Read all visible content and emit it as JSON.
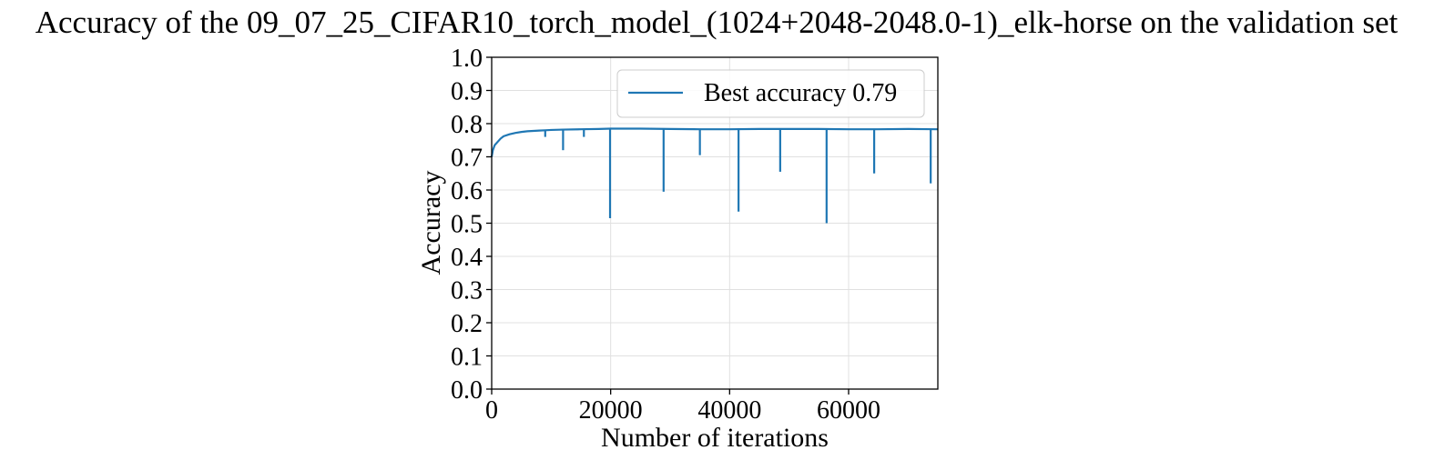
{
  "chart_data": {
    "type": "line",
    "title": "Accuracy of the 09_07_25_CIFAR10_torch_model_(1024+2048-2048.0-1)_elk-horse on the validation set",
    "xlabel": "Number of iterations",
    "ylabel": "Accuracy",
    "xlim": [
      0,
      75000
    ],
    "ylim": [
      0.0,
      1.0
    ],
    "x_ticks": [
      0,
      20000,
      40000,
      60000
    ],
    "x_tick_labels": [
      "0",
      "20000",
      "40000",
      "60000"
    ],
    "y_ticks": [
      0.0,
      0.1,
      0.2,
      0.3,
      0.4,
      0.5,
      0.6,
      0.7,
      0.8,
      0.9,
      1.0
    ],
    "y_tick_labels": [
      "0.0",
      "0.1",
      "0.2",
      "0.3",
      "0.4",
      "0.5",
      "0.6",
      "0.7",
      "0.8",
      "0.9",
      "1.0"
    ],
    "grid": true,
    "legend_position": "top-right",
    "series": [
      {
        "name": "Best accuracy 0.79",
        "color": "#1f77b4",
        "x": [
          0,
          200,
          500,
          1000,
          1500,
          2000,
          3000,
          4000,
          5000,
          6000,
          7000,
          8000,
          9000,
          10000,
          12000,
          15000,
          18000,
          20000,
          25000,
          30000,
          35000,
          40000,
          45000,
          50000,
          55000,
          60000,
          65000,
          70000,
          75000
        ],
        "values": [
          0.7,
          0.72,
          0.735,
          0.745,
          0.755,
          0.762,
          0.768,
          0.772,
          0.775,
          0.777,
          0.778,
          0.779,
          0.78,
          0.781,
          0.782,
          0.783,
          0.784,
          0.785,
          0.785,
          0.784,
          0.783,
          0.783,
          0.784,
          0.784,
          0.784,
          0.783,
          0.783,
          0.784,
          0.783
        ]
      }
    ],
    "spikes": [
      {
        "x": 9000,
        "y": 0.76
      },
      {
        "x": 12000,
        "y": 0.72
      },
      {
        "x": 15500,
        "y": 0.76
      },
      {
        "x": 19900,
        "y": 0.515
      },
      {
        "x": 28900,
        "y": 0.595
      },
      {
        "x": 35000,
        "y": 0.705
      },
      {
        "x": 41500,
        "y": 0.535
      },
      {
        "x": 48500,
        "y": 0.655
      },
      {
        "x": 56300,
        "y": 0.5
      },
      {
        "x": 64300,
        "y": 0.65
      },
      {
        "x": 73800,
        "y": 0.62
      }
    ]
  }
}
